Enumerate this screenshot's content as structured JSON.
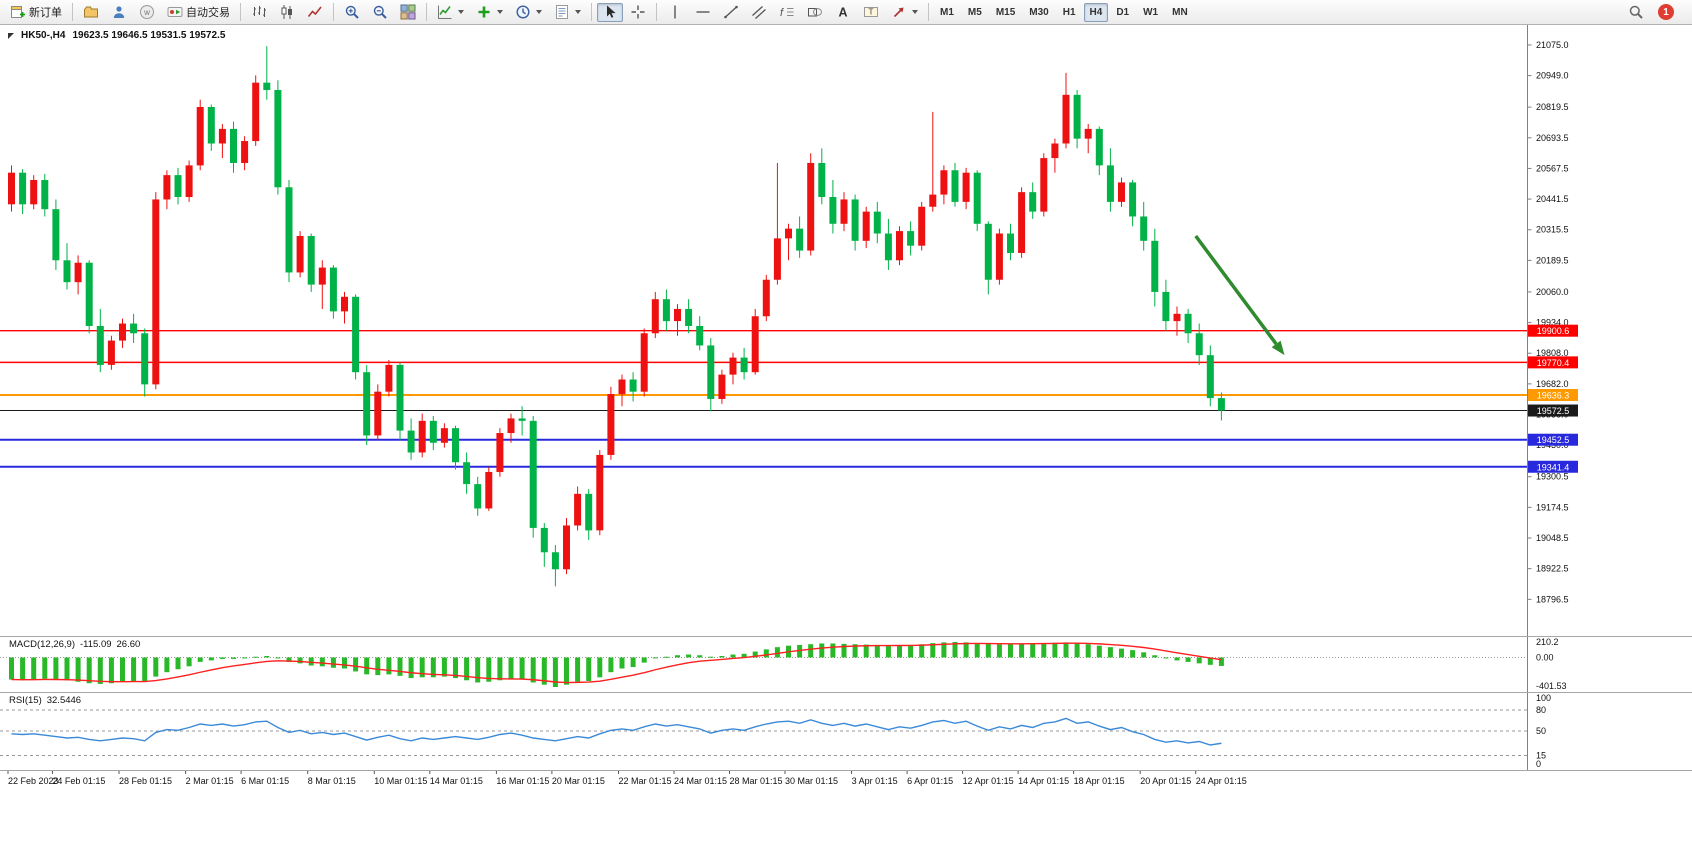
{
  "colors": {
    "bull": "#ee1111",
    "bear": "#00b247",
    "macd_hist": "#28b828",
    "macd_signal": "#ff2020",
    "rsi_line": "#3b8ad8",
    "axis_text": "#111111",
    "arrow": "#2e8b2e"
  },
  "toolbar": {
    "notification_badge": "1",
    "groups": [
      {
        "items": [
          {
            "name": "new-order-button",
            "icon": "new-order-icon",
            "label": "新订单"
          }
        ]
      },
      {
        "items": [
          {
            "name": "chart-profiles-button",
            "icon": "profiles-icon"
          },
          {
            "name": "market-watch-button",
            "icon": "market-watch-icon"
          },
          {
            "name": "community-button",
            "icon": "community-icon"
          },
          {
            "name": "auto-trading-button",
            "icon": "auto-trading-icon",
            "label": "自动交易"
          }
        ]
      },
      {
        "items": [
          {
            "name": "bar-chart-button",
            "icon": "bar-chart-icon"
          },
          {
            "name": "candlestick-button",
            "icon": "candlestick-icon"
          },
          {
            "name": "line-chart-button",
            "icon": "line-chart-icon"
          }
        ]
      },
      {
        "items": [
          {
            "name": "zoom-in-button",
            "icon": "zoom-in-icon"
          },
          {
            "name": "zoom-out-button",
            "icon": "zoom-out-icon"
          },
          {
            "name": "tile-windows-button",
            "icon": "tile-windows-icon"
          }
        ]
      },
      {
        "items": [
          {
            "name": "indicators-button",
            "icon": "indicators-icon",
            "dropdown": true
          },
          {
            "name": "add-indicator-button",
            "icon": "add-indicator-icon",
            "dropdown": true
          },
          {
            "name": "periods-button",
            "icon": "periods-icon",
            "dropdown": true
          },
          {
            "name": "templates-button",
            "icon": "templates-icon",
            "dropdown": true
          }
        ]
      },
      {
        "items": [
          {
            "name": "cursor-button",
            "icon": "cursor-icon",
            "active": true
          },
          {
            "name": "crosshair-button",
            "icon": "crosshair-icon"
          }
        ]
      },
      {
        "items": [
          {
            "name": "vertical-line-button",
            "icon": "vertical-line-icon"
          },
          {
            "name": "horizontal-line-button",
            "icon": "horizontal-line-icon"
          },
          {
            "name": "trendline-button",
            "icon": "trendline-icon"
          },
          {
            "name": "channel-button",
            "icon": "channel-icon"
          },
          {
            "name": "fibonacci-button",
            "icon": "fibonacci-icon"
          },
          {
            "name": "shapes-button",
            "icon": "shapes-icon"
          },
          {
            "name": "text-button",
            "icon": "text-icon"
          },
          {
            "name": "label-button",
            "icon": "label-icon"
          },
          {
            "name": "arrows-button",
            "icon": "arrows-icon",
            "dropdown": true
          }
        ]
      },
      {
        "items": [
          {
            "name": "timeframe-m1",
            "label": "M1",
            "tf": true
          },
          {
            "name": "timeframe-m5",
            "label": "M5",
            "tf": true
          },
          {
            "name": "timeframe-m15",
            "label": "M15",
            "tf": true
          },
          {
            "name": "timeframe-m30",
            "label": "M30",
            "tf": true
          },
          {
            "name": "timeframe-h1",
            "label": "H1",
            "tf": true
          },
          {
            "name": "timeframe-h4",
            "label": "H4",
            "tf": true,
            "active": true
          },
          {
            "name": "timeframe-d1",
            "label": "D1",
            "tf": true
          },
          {
            "name": "timeframe-w1",
            "label": "W1",
            "tf": true
          },
          {
            "name": "timeframe-mn",
            "label": "MN",
            "tf": true
          }
        ]
      }
    ]
  },
  "chart": {
    "symbol": "HK50-,H4",
    "ohlc": "19623.5 19646.5 19531.5 19572.5",
    "price_axis_ticks": [
      "21075.0",
      "20949.0",
      "20819.5",
      "20693.5",
      "20567.5",
      "20441.5",
      "20315.5",
      "20189.5",
      "20060.0",
      "19934.0",
      "19808.0",
      "19682.0",
      "19556.0",
      "19430.0",
      "19300.5",
      "19174.5",
      "19048.5",
      "18922.5",
      "18796.5"
    ],
    "hlines": [
      {
        "price": 19900.6,
        "label": "19900.6",
        "color": "#ff0000",
        "width": 1.4
      },
      {
        "price": 19770.4,
        "label": "19770.4",
        "color": "#ff0000",
        "width": 1.4
      },
      {
        "price": 19636.3,
        "label": "19636.3",
        "color": "#ff9900",
        "width": 2
      },
      {
        "price": 19572.5,
        "label": "19572.5",
        "color": "#1a1a1a",
        "width": 1,
        "role": "current-price"
      },
      {
        "price": 19452.5,
        "label": "19452.5",
        "color": "#2828dd",
        "width": 2
      },
      {
        "price": 19341.4,
        "label": "19341.4",
        "color": "#2828dd",
        "width": 2
      }
    ],
    "arrow": {
      "from_index": 107,
      "from_price": 20290,
      "to_index": 115,
      "to_price": 19800
    },
    "candles": [
      [
        20420,
        20580,
        20390,
        20550
      ],
      [
        20550,
        20565,
        20380,
        20420
      ],
      [
        20420,
        20540,
        20400,
        20520
      ],
      [
        20520,
        20545,
        20370,
        20400
      ],
      [
        20400,
        20440,
        20150,
        20190
      ],
      [
        20190,
        20260,
        20070,
        20100
      ],
      [
        20100,
        20210,
        20050,
        20180
      ],
      [
        20180,
        20190,
        19890,
        19920
      ],
      [
        19920,
        19990,
        19730,
        19760
      ],
      [
        19760,
        19880,
        19740,
        19860
      ],
      [
        19860,
        19950,
        19830,
        19930
      ],
      [
        19930,
        19970,
        19850,
        19890
      ],
      [
        19890,
        19910,
        19630,
        19680
      ],
      [
        19680,
        20470,
        19660,
        20440
      ],
      [
        20440,
        20560,
        20400,
        20540
      ],
      [
        20540,
        20570,
        20420,
        20450
      ],
      [
        20450,
        20600,
        20430,
        20580
      ],
      [
        20580,
        20850,
        20560,
        20820
      ],
      [
        20820,
        20830,
        20640,
        20670
      ],
      [
        20670,
        20750,
        20610,
        20730
      ],
      [
        20730,
        20760,
        20550,
        20590
      ],
      [
        20590,
        20700,
        20560,
        20680
      ],
      [
        20680,
        20950,
        20660,
        20920
      ],
      [
        20920,
        21070,
        20850,
        20890
      ],
      [
        20890,
        20930,
        20460,
        20490
      ],
      [
        20490,
        20520,
        20100,
        20140
      ],
      [
        20140,
        20310,
        20120,
        20290
      ],
      [
        20290,
        20300,
        20060,
        20090
      ],
      [
        20090,
        20190,
        19990,
        20160
      ],
      [
        20160,
        20170,
        19950,
        19980
      ],
      [
        19980,
        20060,
        19930,
        20040
      ],
      [
        20040,
        20050,
        19700,
        19730
      ],
      [
        19730,
        19760,
        19430,
        19470
      ],
      [
        19470,
        19680,
        19450,
        19650
      ],
      [
        19650,
        19780,
        19630,
        19760
      ],
      [
        19760,
        19770,
        19450,
        19490
      ],
      [
        19490,
        19540,
        19370,
        19400
      ],
      [
        19400,
        19560,
        19380,
        19530
      ],
      [
        19530,
        19550,
        19410,
        19440
      ],
      [
        19440,
        19520,
        19420,
        19500
      ],
      [
        19500,
        19510,
        19330,
        19360
      ],
      [
        19360,
        19400,
        19230,
        19270
      ],
      [
        19270,
        19300,
        19140,
        19170
      ],
      [
        19170,
        19340,
        19160,
        19320
      ],
      [
        19320,
        19500,
        19300,
        19480
      ],
      [
        19480,
        19560,
        19440,
        19540
      ],
      [
        19540,
        19590,
        19470,
        19530
      ],
      [
        19530,
        19550,
        19050,
        19090
      ],
      [
        19090,
        19110,
        18930,
        18990
      ],
      [
        18990,
        19020,
        18850,
        18920
      ],
      [
        18920,
        19130,
        18900,
        19100
      ],
      [
        19100,
        19260,
        19080,
        19230
      ],
      [
        19230,
        19250,
        19040,
        19080
      ],
      [
        19080,
        19410,
        19060,
        19390
      ],
      [
        19390,
        19670,
        19370,
        19640
      ],
      [
        19640,
        19720,
        19590,
        19700
      ],
      [
        19700,
        19730,
        19610,
        19650
      ],
      [
        19650,
        19910,
        19630,
        19890
      ],
      [
        19890,
        20060,
        19870,
        20030
      ],
      [
        20030,
        20070,
        19900,
        19940
      ],
      [
        19940,
        20010,
        19880,
        19990
      ],
      [
        19990,
        20030,
        19890,
        19920
      ],
      [
        19920,
        19960,
        19820,
        19840
      ],
      [
        19840,
        19870,
        19570,
        19620
      ],
      [
        19620,
        19740,
        19600,
        19720
      ],
      [
        19720,
        19810,
        19680,
        19790
      ],
      [
        19790,
        19830,
        19700,
        19730
      ],
      [
        19730,
        19990,
        19720,
        19960
      ],
      [
        19960,
        20130,
        19940,
        20110
      ],
      [
        20110,
        20590,
        20090,
        20280
      ],
      [
        20280,
        20340,
        20190,
        20320
      ],
      [
        20320,
        20370,
        20200,
        20230
      ],
      [
        20230,
        20630,
        20210,
        20590
      ],
      [
        20590,
        20650,
        20420,
        20450
      ],
      [
        20450,
        20520,
        20300,
        20340
      ],
      [
        20340,
        20470,
        20310,
        20440
      ],
      [
        20440,
        20460,
        20230,
        20270
      ],
      [
        20270,
        20410,
        20240,
        20390
      ],
      [
        20390,
        20430,
        20260,
        20300
      ],
      [
        20300,
        20360,
        20150,
        20190
      ],
      [
        20190,
        20330,
        20170,
        20310
      ],
      [
        20310,
        20350,
        20210,
        20250
      ],
      [
        20250,
        20430,
        20230,
        20410
      ],
      [
        20410,
        20800,
        20390,
        20460
      ],
      [
        20460,
        20580,
        20420,
        20560
      ],
      [
        20560,
        20590,
        20410,
        20430
      ],
      [
        20430,
        20570,
        20400,
        20550
      ],
      [
        20550,
        20560,
        20310,
        20340
      ],
      [
        20340,
        20350,
        20050,
        20110
      ],
      [
        20110,
        20320,
        20090,
        20300
      ],
      [
        20300,
        20340,
        20190,
        20220
      ],
      [
        20220,
        20490,
        20200,
        20470
      ],
      [
        20470,
        20510,
        20360,
        20390
      ],
      [
        20390,
        20630,
        20370,
        20610
      ],
      [
        20610,
        20690,
        20550,
        20670
      ],
      [
        20670,
        20960,
        20650,
        20870
      ],
      [
        20870,
        20890,
        20650,
        20690
      ],
      [
        20690,
        20750,
        20630,
        20730
      ],
      [
        20730,
        20740,
        20540,
        20580
      ],
      [
        20580,
        20650,
        20390,
        20430
      ],
      [
        20430,
        20530,
        20410,
        20510
      ],
      [
        20510,
        20520,
        20330,
        20370
      ],
      [
        20370,
        20430,
        20230,
        20270
      ],
      [
        20270,
        20320,
        20000,
        20060
      ],
      [
        20060,
        20110,
        19900,
        19940
      ],
      [
        19940,
        20000,
        19880,
        19970
      ],
      [
        19970,
        19990,
        19850,
        19890
      ],
      [
        19890,
        19930,
        19760,
        19800
      ],
      [
        19800,
        19840,
        19590,
        19623.5
      ],
      [
        19623.5,
        19646.5,
        19531.5,
        19572.5
      ]
    ]
  },
  "macd": {
    "name": "MACD(12,26,9)",
    "value_main": "-115.09",
    "value_signal": "26.60",
    "axis_labels": [
      "210.2",
      "0.00",
      "-401.53"
    ],
    "histogram": [
      -300,
      -310,
      -300,
      -290,
      -300,
      -310,
      -330,
      -350,
      -360,
      -350,
      -330,
      -320,
      -330,
      -260,
      -200,
      -160,
      -120,
      -60,
      -40,
      -20,
      -20,
      -10,
      10,
      20,
      -10,
      -60,
      -80,
      -110,
      -120,
      -140,
      -150,
      -190,
      -230,
      -240,
      -230,
      -250,
      -280,
      -270,
      -270,
      -260,
      -280,
      -310,
      -340,
      -330,
      -310,
      -300,
      -300,
      -340,
      -370,
      -401.53,
      -370,
      -330,
      -320,
      -270,
      -200,
      -150,
      -130,
      -70,
      -10,
      10,
      30,
      40,
      30,
      10,
      20,
      40,
      50,
      80,
      110,
      140,
      160,
      170,
      180,
      190,
      190,
      185,
      180,
      175,
      170,
      165,
      165,
      170,
      180,
      195,
      205,
      210.2,
      205,
      195,
      185,
      180,
      180,
      185,
      190,
      195,
      200,
      205,
      195,
      180,
      160,
      140,
      120,
      100,
      70,
      30,
      -10,
      -40,
      -60,
      -80,
      -100,
      -115.09
    ]
  },
  "rsi": {
    "name": "RSI(15)",
    "value": "32.5446",
    "axis_labels": [
      "100",
      "80",
      "50",
      "15",
      "0"
    ],
    "levels": [
      80,
      50,
      15
    ],
    "values": [
      46,
      45,
      46,
      44,
      42,
      40,
      41,
      38,
      36,
      38,
      40,
      39,
      36,
      48,
      52,
      51,
      55,
      60,
      58,
      60,
      57,
      59,
      63,
      64,
      55,
      48,
      51,
      46,
      48,
      45,
      47,
      42,
      37,
      41,
      44,
      39,
      36,
      40,
      38,
      40,
      42,
      40,
      38,
      41,
      45,
      47,
      44,
      40,
      38,
      36,
      39,
      42,
      40,
      46,
      51,
      53,
      51,
      56,
      60,
      57,
      59,
      56,
      53,
      47,
      51,
      53,
      51,
      56,
      60,
      63,
      64,
      61,
      66,
      61,
      58,
      61,
      57,
      60,
      56,
      52,
      56,
      54,
      58,
      63,
      65,
      61,
      64,
      57,
      51,
      56,
      53,
      58,
      55,
      61,
      63,
      68,
      61,
      63,
      57,
      52,
      55,
      49,
      45,
      38,
      34,
      36,
      33,
      35,
      30,
      32.5
    ]
  },
  "time_axis": {
    "labels": [
      [
        "22 Feb 2023",
        0
      ],
      [
        "24 Feb 01:15",
        4
      ],
      [
        "28 Feb 01:15",
        10
      ],
      [
        "2 Mar 01:15",
        16
      ],
      [
        "6 Mar 01:15",
        21
      ],
      [
        "8 Mar 01:15",
        27
      ],
      [
        "10 Mar 01:15",
        33
      ],
      [
        "14 Mar 01:15",
        38
      ],
      [
        "16 Mar 01:15",
        44
      ],
      [
        "20 Mar 01:15",
        49
      ],
      [
        "22 Mar 01:15",
        55
      ],
      [
        "24 Mar 01:15",
        60
      ],
      [
        "28 Mar 01:15",
        65
      ],
      [
        "30 Mar 01:15",
        70
      ],
      [
        "3 Apr 01:15",
        76
      ],
      [
        "6 Apr 01:15",
        81
      ],
      [
        "12 Apr 01:15",
        86
      ],
      [
        "14 Apr 01:15",
        91
      ],
      [
        "18 Apr 01:15",
        96
      ],
      [
        "20 Apr 01:15",
        102
      ],
      [
        "24 Apr 01:15",
        107
      ]
    ]
  }
}
